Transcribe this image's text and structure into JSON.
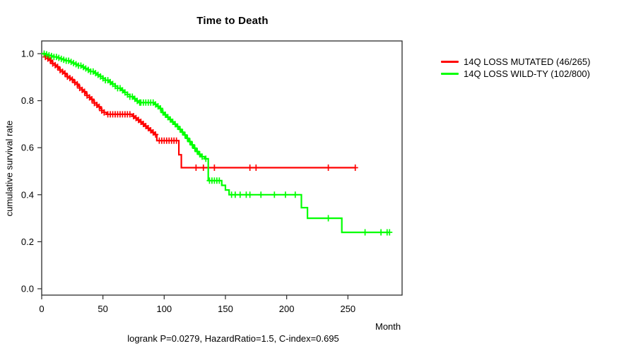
{
  "title": "Time to Death",
  "footer": "logrank P=0.0279, HazardRatio=1.5, C-index=0.695",
  "axes": {
    "x_label": "Month",
    "y_label": "cumulative survival rate"
  },
  "chart_data": {
    "type": "line",
    "subtype": "kaplan-meier-step-curve",
    "title": "Time to Death",
    "xlabel": "Month",
    "ylabel": "cumulative survival rate",
    "xlim": [
      0,
      295
    ],
    "ylim": [
      0.0,
      1.0
    ],
    "x_ticks": [
      0,
      50,
      100,
      150,
      200,
      250
    ],
    "y_ticks": [
      "0.0",
      "0.2",
      "0.4",
      "0.6",
      "0.8",
      "1.0"
    ],
    "grid": false,
    "legend_position": "right-outside",
    "annotation": "logrank P=0.0279, HazardRatio=1.5, C-index=0.695",
    "frame_color": "#2b2b2b",
    "series": [
      {
        "name": "14Q LOSS MUTATED (46/265)",
        "color": "#ff0000",
        "events": 46,
        "n": 265,
        "end_month": 256,
        "steps": [
          [
            0,
            1.0
          ],
          [
            2,
            0.993
          ],
          [
            3,
            0.986
          ],
          [
            5,
            0.979
          ],
          [
            6,
            0.972
          ],
          [
            8,
            0.965
          ],
          [
            9,
            0.958
          ],
          [
            11,
            0.951
          ],
          [
            12,
            0.944
          ],
          [
            14,
            0.937
          ],
          [
            15,
            0.93
          ],
          [
            17,
            0.923
          ],
          [
            18,
            0.916
          ],
          [
            20,
            0.909
          ],
          [
            21,
            0.902
          ],
          [
            23,
            0.896
          ],
          [
            24,
            0.89
          ],
          [
            26,
            0.884
          ],
          [
            27,
            0.877
          ],
          [
            29,
            0.87
          ],
          [
            30,
            0.862
          ],
          [
            31,
            0.854
          ],
          [
            33,
            0.846
          ],
          [
            34,
            0.838
          ],
          [
            36,
            0.83
          ],
          [
            37,
            0.822
          ],
          [
            39,
            0.814
          ],
          [
            40,
            0.806
          ],
          [
            42,
            0.798
          ],
          [
            43,
            0.79
          ],
          [
            45,
            0.782
          ],
          [
            46,
            0.774
          ],
          [
            48,
            0.766
          ],
          [
            49,
            0.758
          ],
          [
            51,
            0.75
          ],
          [
            53,
            0.742
          ],
          [
            74,
            0.734
          ],
          [
            76,
            0.726
          ],
          [
            78,
            0.718
          ],
          [
            80,
            0.71
          ],
          [
            82,
            0.701
          ],
          [
            84,
            0.692
          ],
          [
            86,
            0.683
          ],
          [
            88,
            0.674
          ],
          [
            90,
            0.665
          ],
          [
            92,
            0.656
          ],
          [
            94,
            0.63
          ],
          [
            112,
            0.57
          ],
          [
            114,
            0.515
          ]
        ],
        "censor_months": [
          3,
          5,
          7,
          9,
          11,
          13,
          15,
          17,
          19,
          21,
          23,
          25,
          27,
          29,
          31,
          33,
          35,
          37,
          39,
          41,
          43,
          45,
          47,
          49,
          51,
          54,
          56,
          58,
          60,
          62,
          64,
          66,
          68,
          70,
          72,
          75,
          77,
          79,
          81,
          83,
          85,
          87,
          89,
          91,
          93,
          96,
          98,
          100,
          102,
          104,
          106,
          108,
          110,
          126,
          132,
          141,
          170,
          175,
          234,
          256
        ]
      },
      {
        "name": "14Q LOSS WILD-TY (102/800)",
        "color": "#00ff00",
        "events": 102,
        "n": 800,
        "end_month": 284,
        "steps": [
          [
            0,
            1.0
          ],
          [
            3,
            0.997
          ],
          [
            5,
            0.993
          ],
          [
            8,
            0.99
          ],
          [
            10,
            0.986
          ],
          [
            13,
            0.982
          ],
          [
            15,
            0.978
          ],
          [
            18,
            0.974
          ],
          [
            20,
            0.97
          ],
          [
            23,
            0.965
          ],
          [
            25,
            0.96
          ],
          [
            28,
            0.955
          ],
          [
            30,
            0.949
          ],
          [
            33,
            0.943
          ],
          [
            35,
            0.937
          ],
          [
            38,
            0.931
          ],
          [
            40,
            0.924
          ],
          [
            43,
            0.917
          ],
          [
            45,
            0.91
          ],
          [
            48,
            0.903
          ],
          [
            50,
            0.895
          ],
          [
            52,
            0.887
          ],
          [
            55,
            0.879
          ],
          [
            57,
            0.871
          ],
          [
            60,
            0.862
          ],
          [
            62,
            0.853
          ],
          [
            65,
            0.844
          ],
          [
            67,
            0.835
          ],
          [
            70,
            0.826
          ],
          [
            72,
            0.817
          ],
          [
            75,
            0.808
          ],
          [
            77,
            0.799
          ],
          [
            79,
            0.792
          ],
          [
            92,
            0.784
          ],
          [
            94,
            0.776
          ],
          [
            96,
            0.767
          ],
          [
            98,
            0.75
          ],
          [
            100,
            0.74
          ],
          [
            102,
            0.73
          ],
          [
            104,
            0.72
          ],
          [
            106,
            0.71
          ],
          [
            108,
            0.7
          ],
          [
            110,
            0.69
          ],
          [
            112,
            0.678
          ],
          [
            114,
            0.666
          ],
          [
            116,
            0.654
          ],
          [
            118,
            0.64
          ],
          [
            120,
            0.626
          ],
          [
            122,
            0.612
          ],
          [
            124,
            0.598
          ],
          [
            126,
            0.584
          ],
          [
            128,
            0.572
          ],
          [
            130,
            0.562
          ],
          [
            133,
            0.553
          ],
          [
            136,
            0.46
          ],
          [
            147,
            0.44
          ],
          [
            150,
            0.42
          ],
          [
            153,
            0.4
          ],
          [
            212,
            0.345
          ],
          [
            217,
            0.3
          ],
          [
            245,
            0.24
          ]
        ],
        "censor_months": [
          2,
          4,
          6,
          8,
          10,
          12,
          14,
          16,
          18,
          20,
          22,
          24,
          26,
          28,
          30,
          32,
          34,
          36,
          38,
          40,
          42,
          44,
          46,
          48,
          50,
          52,
          54,
          56,
          58,
          60,
          62,
          64,
          66,
          68,
          70,
          72,
          74,
          76,
          78,
          80,
          81,
          83,
          85,
          87,
          89,
          91,
          93,
          95,
          97,
          99,
          101,
          103,
          105,
          107,
          109,
          111,
          113,
          115,
          117,
          119,
          121,
          123,
          125,
          127,
          129,
          131,
          134,
          137,
          139,
          141,
          143,
          145,
          155,
          158,
          162,
          167,
          170,
          179,
          190,
          199,
          207,
          234,
          264,
          277,
          282,
          284
        ]
      }
    ]
  },
  "legend": {
    "items": [
      {
        "label": "14Q LOSS MUTATED (46/265)",
        "color": "#ff0000"
      },
      {
        "label": "14Q LOSS WILD-TY (102/800)",
        "color": "#00ff00"
      }
    ]
  }
}
